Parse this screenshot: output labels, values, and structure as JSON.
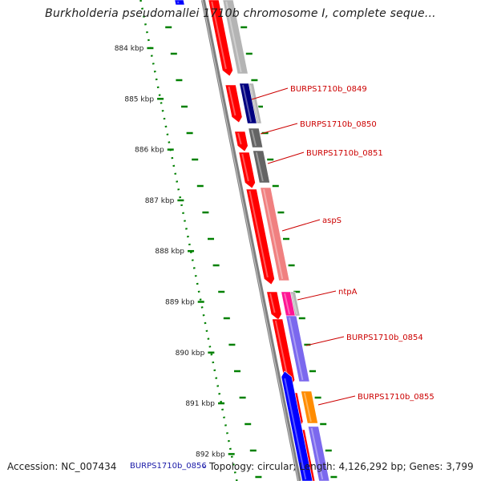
{
  "title": "Burkholderia pseudomallei 1710b chromosome I, complete seque...",
  "accession": "Accession: NC_007434",
  "hover_gene": "BURPS1710b_0856",
  "footer_separator": "-",
  "topology": "Topology: circular; Length: 4,126,292 bp; Genes: 3,799",
  "ruler_labels": [
    "884 kbp",
    "885 kbp",
    "886 kbp",
    "887 kbp",
    "888 kbp",
    "889 kbp",
    "890 kbp",
    "891 kbp",
    "892 kbp"
  ],
  "gene_labels": [
    "BURPS1710b_0849",
    "BURPS1710b_0850",
    "BURPS1710b_0851",
    "aspS",
    "ntpA",
    "BURPS1710b_0854",
    "BURPS1710b_0855"
  ],
  "colors": {
    "label_red": "#cc0000",
    "gene_red": "#ff0000",
    "gene_blue": "#0000ff",
    "navy": "#000080",
    "gray_light": "#b4b4b4",
    "gray_dark": "#646464",
    "salmon": "#f08080",
    "magenta": "#ff1493",
    "purple": "#7b68ee",
    "orange": "#ff8c00",
    "tick_green": "#008000",
    "backbone": "#808080"
  }
}
